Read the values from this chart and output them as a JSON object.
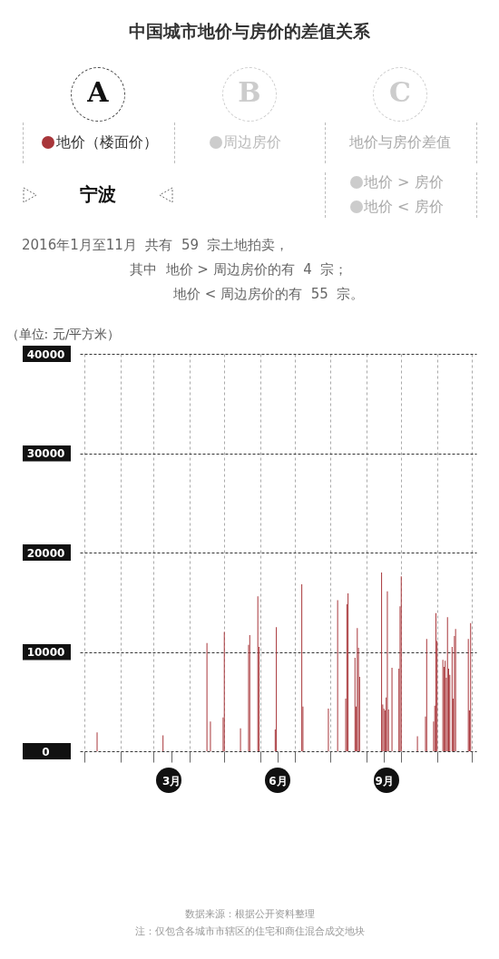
{
  "chart_data": {
    "type": "bar",
    "title": "中国城市地价与房价的差值关系",
    "subtitle": "宁波",
    "ylabel": "（单位: 元/平方米）",
    "annotations": [
      "A",
      "B",
      "C",
      "周边房价",
      "地价与房价差值",
      "地价 > 房价",
      "地价 < 房价",
      "2016年1月至11月  共有  59  宗土地拍卖，",
      "其中  地价 > 周边房价的有  4  宗；",
      "地价 < 周边房价的有  55  宗。",
      "数据来源：根据公开资料整理",
      "注：仅包含各城市市辖区的住宅和商住混合成交地块"
    ],
    "x": [
      "2016-01-12",
      "2016-03-09",
      "2016-04-16",
      "2016-04-19",
      "2016-04-30",
      "2016-05-01",
      "2016-05-15",
      "2016-05-22",
      "2016-05-23",
      "2016-05-30",
      "2016-05-31",
      "2016-06-14",
      "2016-06-15",
      "2016-07-07",
      "2016-07-08",
      "2016-07-30",
      "2016-08-07",
      "2016-08-14",
      "2016-08-15",
      "2016-08-16",
      "2016-08-22",
      "2016-08-23",
      "2016-08-24",
      "2016-08-25",
      "2016-08-26",
      "2016-09-14",
      "2016-09-15",
      "2016-09-16",
      "2016-09-17",
      "2016-09-18",
      "2016-09-19",
      "2016-09-20",
      "2016-09-23",
      "2016-09-29",
      "2016-09-30",
      "2016-10-01",
      "2016-10-15",
      "2016-10-22",
      "2016-10-23",
      "2016-10-29",
      "2016-10-30",
      "2016-10-31",
      "2016-11-01",
      "2016-11-06",
      "2016-11-07",
      "2016-11-08",
      "2016-11-09",
      "2016-11-10",
      "2016-11-11",
      "2016-11-12",
      "2016-11-14",
      "2016-11-15",
      "2016-11-16",
      "2016-11-17",
      "2016-11-28",
      "2016-11-29",
      "2016-11-30"
    ],
    "series": [
      {
        "name": "地价（楼面价）",
        "color": "#a8363a",
        "values": [
          1900,
          1600,
          10900,
          3000,
          3400,
          12000,
          2300,
          10700,
          11700,
          15600,
          10500,
          2200,
          12500,
          16800,
          4500,
          4300,
          15200,
          5300,
          14800,
          15900,
          9400,
          4500,
          12400,
          10400,
          7500,
          18000,
          4700,
          4300,
          4100,
          5400,
          16100,
          4200,
          8400,
          8300,
          14600,
          17600,
          1500,
          3500,
          11300,
          3000,
          4600,
          13900,
          11100,
          9200,
          8500,
          9100,
          7400,
          13500,
          8300,
          7700,
          10500,
          5300,
          11600,
          12300,
          11300,
          4100,
          12900
        ]
      }
    ],
    "xlim": [
      "2016-01-01",
      "2016-12-01"
    ],
    "xticks": [
      {
        "value": "2016-01-01",
        "label": null
      },
      {
        "value": "2016-02-01",
        "label": null
      },
      {
        "value": "2016-03-01",
        "label": null
      },
      {
        "value": "2016-03-16",
        "label": "3月"
      },
      {
        "value": "2016-04-01",
        "label": null
      },
      {
        "value": "2016-05-01",
        "label": null
      },
      {
        "value": "2016-06-01",
        "label": null
      },
      {
        "value": "2016-06-16",
        "label": "6月"
      },
      {
        "value": "2016-07-01",
        "label": null
      },
      {
        "value": "2016-08-01",
        "label": null
      },
      {
        "value": "2016-09-01",
        "label": null
      },
      {
        "value": "2016-09-16",
        "label": "9月"
      },
      {
        "value": "2016-10-01",
        "label": null
      },
      {
        "value": "2016-11-01",
        "label": null
      },
      {
        "value": "2016-12-01",
        "label": null
      }
    ],
    "ylim": [
      0,
      40000
    ],
    "yticks": [
      0,
      10000,
      20000,
      30000,
      40000
    ],
    "grid": true
  }
}
